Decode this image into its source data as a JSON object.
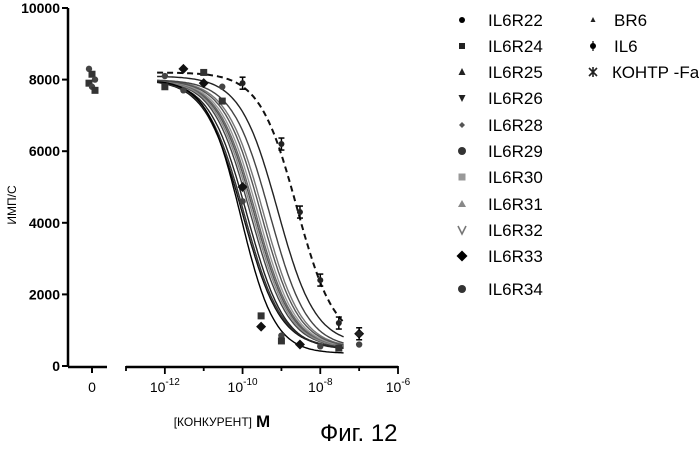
{
  "chart_data": {
    "type": "line",
    "title": "",
    "ylabel": "ИМП/С",
    "xlabel": "[КОНКУРЕНТ]",
    "xlabel_unit": "M",
    "y_ticks": [
      "0",
      "2000",
      "4000",
      "6000",
      "8000",
      "10000"
    ],
    "x_ticks_zero": "0",
    "x_ticks": [
      {
        "base": "10",
        "exp": "-12",
        "value": 1e-12
      },
      {
        "base": "10",
        "exp": "-10",
        "value": 1e-10
      },
      {
        "base": "10",
        "exp": "-8",
        "value": 1e-08
      },
      {
        "base": "10",
        "exp": "-6",
        "value": 1e-06
      }
    ],
    "x_scale": "log",
    "xlim": [
      1e-13,
      1e-06
    ],
    "ylim": [
      0,
      10000
    ],
    "grid": false,
    "legend_position": "right",
    "series": [
      {
        "name": "IL6R22",
        "marker": "dot",
        "top": 8000,
        "bottom": 500,
        "ec50": 1e-10,
        "hill": 0.9
      },
      {
        "name": "IL6R24",
        "marker": "square",
        "top": 8000,
        "bottom": 500,
        "ec50": 1.1e-10,
        "hill": 0.9
      },
      {
        "name": "IL6R25",
        "marker": "triangle",
        "top": 8000,
        "bottom": 450,
        "ec50": 1.3e-10,
        "hill": 0.9
      },
      {
        "name": "IL6R26",
        "marker": "triangle-down",
        "top": 8000,
        "bottom": 500,
        "ec50": 2e-10,
        "hill": 0.9
      },
      {
        "name": "IL6R28",
        "marker": "diamond-small",
        "top": 8000,
        "bottom": 500,
        "ec50": 3.5e-10,
        "hill": 0.9
      },
      {
        "name": "IL6R29",
        "marker": "circle-dense",
        "top": 8000,
        "bottom": 500,
        "ec50": 1.6e-10,
        "hill": 0.9
      },
      {
        "name": "IL6R30",
        "marker": "square-light",
        "top": 8000,
        "bottom": 500,
        "ec50": 1.8e-10,
        "hill": 0.9
      },
      {
        "name": "IL6R31",
        "marker": "triangle-light",
        "top": 8000,
        "bottom": 500,
        "ec50": 2.2e-10,
        "hill": 0.9
      },
      {
        "name": "IL6R32",
        "marker": "v",
        "top": 8000,
        "bottom": 500,
        "ec50": 2.5e-10,
        "hill": 0.9
      },
      {
        "name": "IL6R33",
        "marker": "diamond",
        "top": 8000,
        "bottom": 350,
        "ec50": 9e-11,
        "hill": 1.0
      },
      {
        "name": "IL6R34",
        "marker": "circle-dense",
        "top": 8000,
        "bottom": 500,
        "ec50": 3e-10,
        "hill": 0.9
      },
      {
        "name": "BR6",
        "marker": "triangle-small",
        "top": 8000,
        "bottom": 500,
        "ec50": 5e-10,
        "hill": 0.9
      },
      {
        "name": "IL6",
        "marker": "plus-dot",
        "top": 8100,
        "bottom": 600,
        "ec50": 8e-10,
        "hill": 0.9
      },
      {
        "name": "КОНТР -Fab",
        "marker": "star",
        "top": 8200,
        "bottom": 650,
        "ec50": 2.5e-09,
        "hill": 0.9,
        "dashed": true
      }
    ],
    "zero_points": [
      {
        "x": 0,
        "y": 8300
      },
      {
        "x": 0,
        "y": 8150
      },
      {
        "x": 0,
        "y": 8000
      },
      {
        "x": 0,
        "y": 7900
      },
      {
        "x": 0,
        "y": 7800
      },
      {
        "x": 0,
        "y": 7700
      }
    ],
    "scatter_points": [
      {
        "x": 1e-12,
        "y": 8100
      },
      {
        "x": 1e-12,
        "y": 7800
      },
      {
        "x": 3e-12,
        "y": 8300
      },
      {
        "x": 3e-12,
        "y": 7700
      },
      {
        "x": 1e-11,
        "y": 8200
      },
      {
        "x": 1e-11,
        "y": 7900
      },
      {
        "x": 3e-11,
        "y": 7800
      },
      {
        "x": 3e-11,
        "y": 7400
      },
      {
        "x": 1e-10,
        "y": 5000
      },
      {
        "x": 1e-10,
        "y": 4600
      },
      {
        "x": 3e-10,
        "y": 1400
      },
      {
        "x": 3e-10,
        "y": 1100
      },
      {
        "x": 1e-09,
        "y": 850
      },
      {
        "x": 1e-09,
        "y": 700
      },
      {
        "x": 3e-09,
        "y": 600
      },
      {
        "x": 1e-08,
        "y": 550
      },
      {
        "x": 3e-08,
        "y": 500
      },
      {
        "x": 1e-07,
        "y": 900
      },
      {
        "x": 1e-07,
        "y": 600
      }
    ],
    "control_points": [
      {
        "x": 1e-10,
        "y": 7900
      },
      {
        "x": 1e-09,
        "y": 6200
      },
      {
        "x": 3e-09,
        "y": 4300
      },
      {
        "x": 1e-08,
        "y": 2400
      },
      {
        "x": 3e-08,
        "y": 1200
      },
      {
        "x": 1e-07,
        "y": 900
      }
    ]
  },
  "legend_col1": [
    "IL6R22",
    "IL6R24",
    "IL6R25",
    "IL6R26",
    "IL6R28",
    "IL6R29",
    "IL6R30",
    "IL6R31",
    "IL6R32",
    "IL6R33",
    "IL6R34"
  ],
  "legend_col2": [
    "BR6",
    "IL6",
    "КОНТР -Fab"
  ],
  "caption": "Фиг. 12"
}
